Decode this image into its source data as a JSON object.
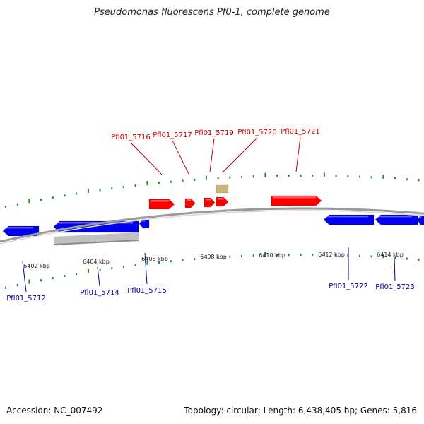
{
  "title": "Pseudomonas fluorescens Pf0-1, complete genome",
  "footer": {
    "accession_label": "Accession: NC_007492",
    "summary_label": "Topology: circular; Length: 6,438,405 bp; Genes: 5,816"
  },
  "colors": {
    "forward_gene": "#ff0000",
    "reverse_gene": "#0000ee",
    "other_feature_grey": "#c0c0c0",
    "other_feature_tan": "#c8b878",
    "backbone": "#8a8a8a",
    "tick": "#228822",
    "forward_label": "#cc0000",
    "reverse_label": "#000099"
  },
  "axis": {
    "unit": "kbp",
    "ticks": [
      {
        "value": 6402,
        "label": "6402 kbp"
      },
      {
        "value": 6404,
        "label": "6404 kbp"
      },
      {
        "value": 6406,
        "label": "6406 kbp"
      },
      {
        "value": 6408,
        "label": "6408 kbp"
      },
      {
        "value": 6410,
        "label": "6410 kbp"
      },
      {
        "value": 6412,
        "label": "6412 kbp"
      },
      {
        "value": 6414,
        "label": "6414 kbp"
      }
    ]
  },
  "genes_forward": [
    {
      "label": "Pfl01_5716"
    },
    {
      "label": "Pfl01_5717"
    },
    {
      "label": "Pfl01_5719"
    },
    {
      "label": "Pfl01_5720"
    },
    {
      "label": "Pfl01_5721"
    }
  ],
  "genes_reverse": [
    {
      "label": "Pfl01_5712"
    },
    {
      "label": "Pfl01_5714"
    },
    {
      "label": "Pfl01_5715"
    },
    {
      "label": "Pfl01_5722"
    },
    {
      "label": "Pfl01_5723"
    }
  ]
}
